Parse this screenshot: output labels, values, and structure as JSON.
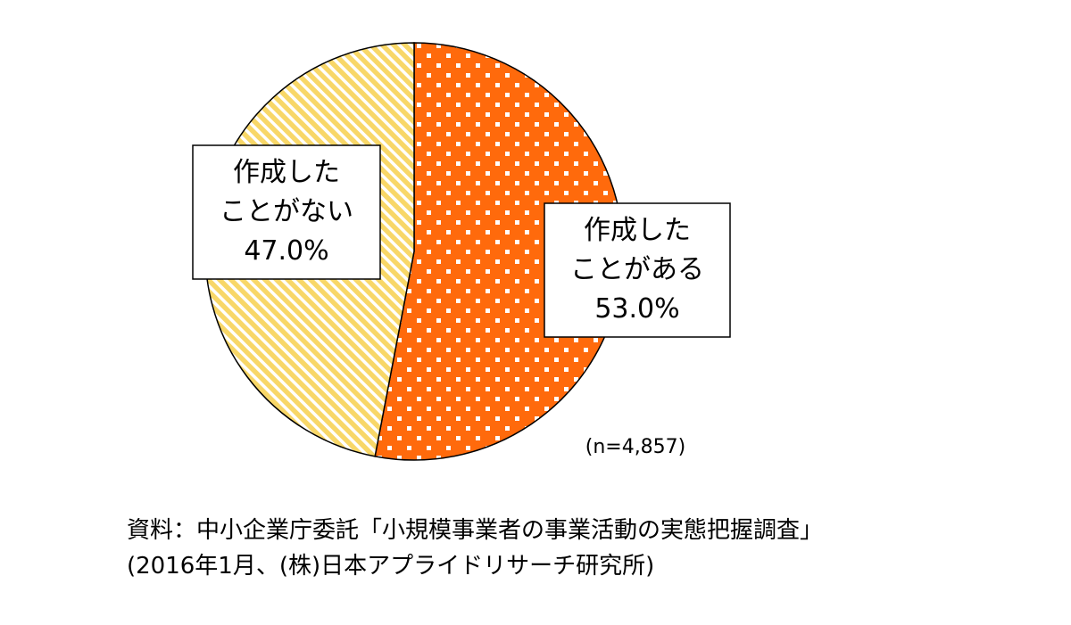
{
  "chart_data": {
    "type": "pie",
    "slices": [
      {
        "label_lines": [
          "作成した",
          "ことがある"
        ],
        "value": 53.0,
        "value_label": "53.0%",
        "color": "#ff6a0c",
        "pattern": "dots"
      },
      {
        "label_lines": [
          "作成した",
          "ことがない"
        ],
        "value": 47.0,
        "value_label": "47.0%",
        "color": "#f8d768",
        "pattern": "diagonal-stripes"
      }
    ],
    "start_angle": "12 o'clock",
    "direction": "clockwise",
    "sample_size": "(n=4,857)"
  },
  "source": {
    "line1": "資料：中小企業庁委託「小規模事業者の事業活動の実態把握調査」",
    "line2": "(2016年1月、(株)日本アプライドリサーチ研究所)"
  }
}
